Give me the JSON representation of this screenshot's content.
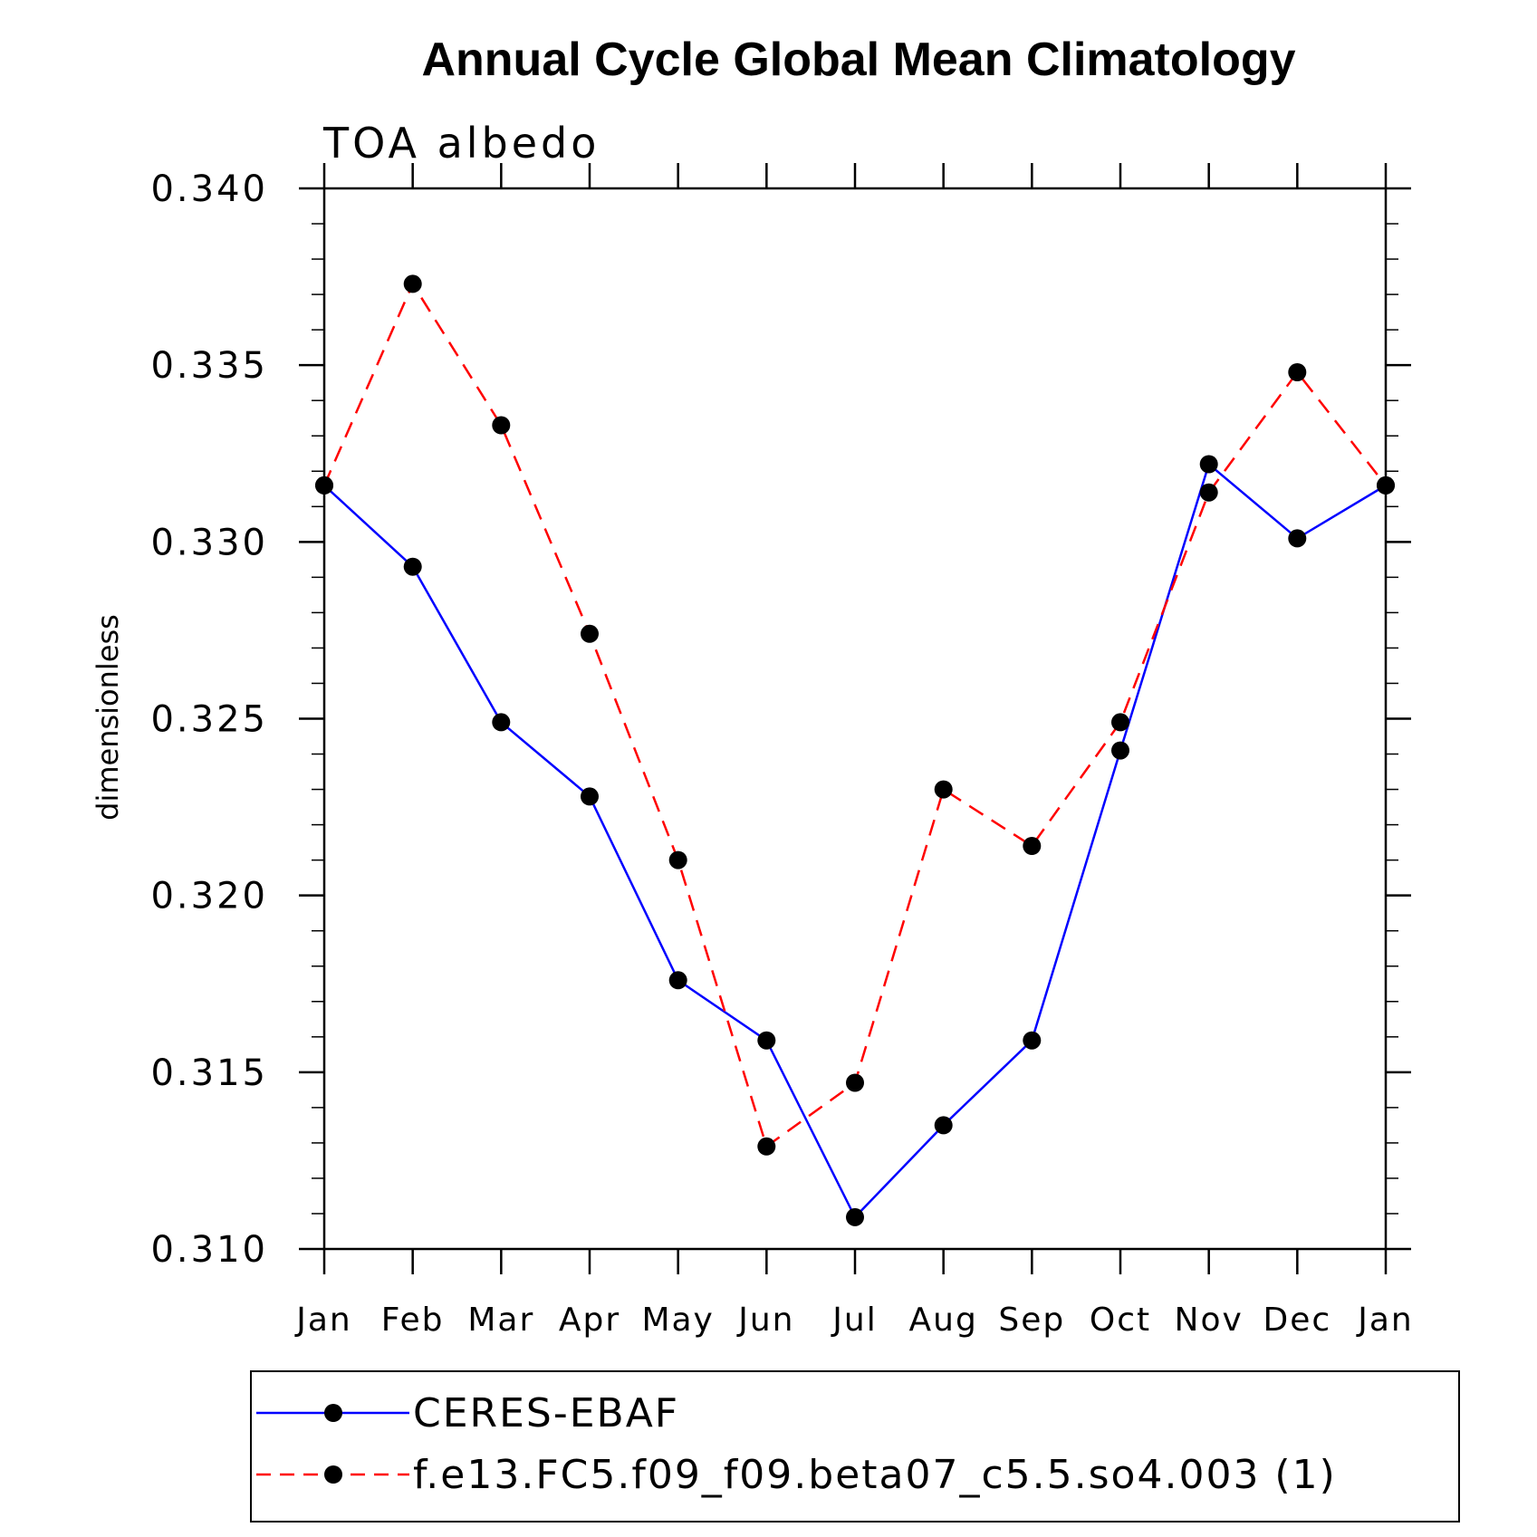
{
  "chart_data": {
    "type": "line",
    "title": "Annual Cycle Global Mean Climatology",
    "subtitle": "TOA albedo",
    "xlabel": "",
    "ylabel": "dimensionless",
    "categories": [
      "Jan",
      "Feb",
      "Mar",
      "Apr",
      "May",
      "Jun",
      "Jul",
      "Aug",
      "Sep",
      "Oct",
      "Nov",
      "Dec",
      "Jan"
    ],
    "ylim": [
      0.31,
      0.34
    ],
    "yticks": [
      "0.310",
      "0.315",
      "0.320",
      "0.325",
      "0.330",
      "0.335",
      "0.340"
    ],
    "grid": false,
    "legend_position": "bottom",
    "series": [
      {
        "name": "CERES-EBAF",
        "color": "#0000ff",
        "line_style": "solid",
        "marker": "filled-circle",
        "values": [
          0.3316,
          0.3293,
          0.3249,
          0.3228,
          0.3176,
          0.3159,
          0.3109,
          0.3135,
          0.3159,
          0.3241,
          0.3322,
          0.3301,
          0.3316
        ]
      },
      {
        "name": "f.e13.FC5.f09_f09.beta07_c5.5.so4.003 (1)",
        "color": "#ff0000",
        "line_style": "dashed",
        "marker": "filled-circle",
        "values": [
          0.3316,
          0.3373,
          0.3333,
          0.3274,
          0.321,
          0.3129,
          0.3147,
          0.323,
          0.3214,
          0.3249,
          0.3314,
          0.3348,
          0.3316
        ]
      }
    ]
  }
}
